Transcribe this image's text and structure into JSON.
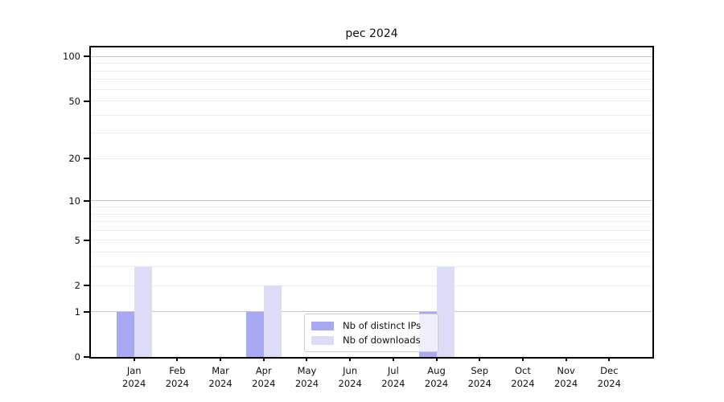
{
  "chart_data": {
    "type": "bar",
    "title": "pec 2024",
    "categories": [
      "Jan",
      "Feb",
      "Mar",
      "Apr",
      "May",
      "Jun",
      "Jul",
      "Aug",
      "Sep",
      "Oct",
      "Nov",
      "Dec"
    ],
    "category_year": "2024",
    "series": [
      {
        "name": "Nb of distinct IPs",
        "color": "#a9a9f3",
        "values": [
          1,
          0,
          0,
          1,
          0,
          0,
          0,
          1,
          0,
          0,
          0,
          0
        ]
      },
      {
        "name": "Nb of downloads",
        "color": "#dcdcf7",
        "values": [
          3,
          0,
          0,
          2,
          0,
          0,
          0,
          3,
          0,
          0,
          0,
          0
        ]
      }
    ],
    "xlabel": "",
    "ylabel": "",
    "yticks": [
      0,
      1,
      2,
      5,
      10,
      20,
      50,
      100
    ],
    "scale": "log1p",
    "ylim": [
      0,
      115
    ],
    "grid": {
      "on": true,
      "major": [
        1,
        10,
        100
      ],
      "minor": [
        2,
        3,
        4,
        5,
        6,
        7,
        8,
        9,
        20,
        30,
        40,
        50,
        60,
        70,
        80,
        90
      ],
      "major_color": "#c6c6c6",
      "minor_color": "#ececec"
    },
    "legend": {
      "position": "lower center",
      "framealpha": 0.8,
      "border_color": "#cccccc"
    },
    "spine_color": "#000000",
    "background": "#ffffff"
  }
}
